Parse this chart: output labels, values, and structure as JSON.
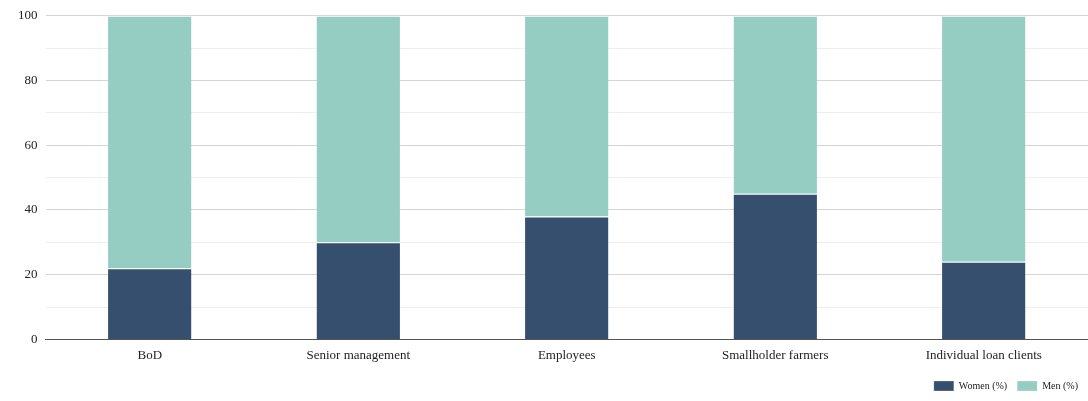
{
  "chart_data": {
    "type": "bar",
    "stacked": true,
    "categories": [
      "BoD",
      "Senior management",
      "Employees",
      "Smallholder farmers",
      "Individual loan clients"
    ],
    "series": [
      {
        "name": "Women (%)",
        "color": "#364f6f",
        "values": [
          22,
          30,
          38,
          45,
          24
        ]
      },
      {
        "name": "Men (%)",
        "color": "#96cdc3",
        "values": [
          78,
          70,
          62,
          55,
          76
        ]
      }
    ],
    "ylim": [
      0,
      100
    ],
    "yticks": [
      0,
      {
        "value": 10,
        "label": null
      },
      20,
      {
        "value": 30,
        "label": null
      },
      40,
      {
        "value": 50,
        "label": null
      },
      60,
      {
        "value": 70,
        "label": null
      },
      80,
      {
        "value": 90,
        "label": null
      },
      100
    ],
    "grid": "y",
    "legend": "bottom right"
  }
}
